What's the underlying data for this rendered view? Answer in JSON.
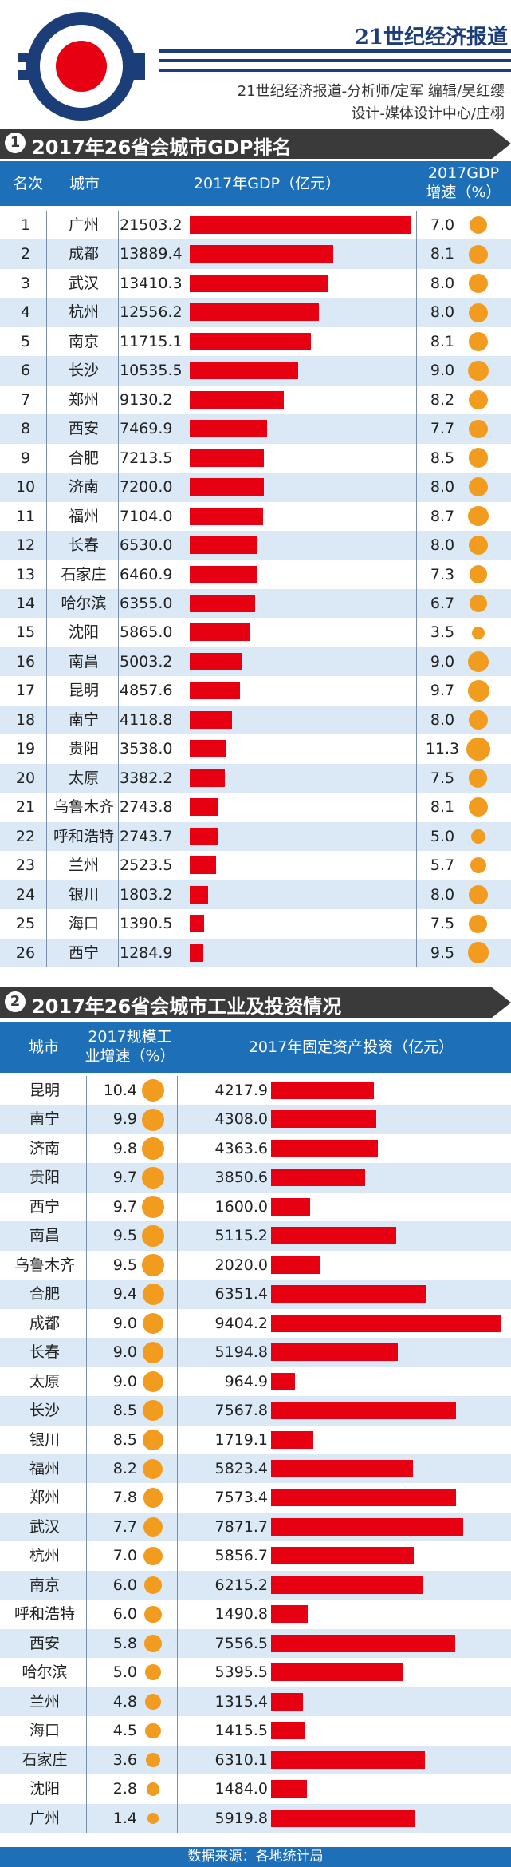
{
  "header": {
    "paper_name": "21世纪经济报道",
    "credit_line1": "21世纪经济报道-分析师/定军 编辑/吴红缨",
    "credit_line2": "设计-媒体设计中心/庄栩"
  },
  "section1": {
    "number": "1",
    "title": "2017年26省会城市GDP排名",
    "headers": {
      "rank": "名次",
      "city": "城市",
      "gdp": "2017年GDP（亿元）",
      "growth_line1": "2017GDP",
      "growth_line2": "增速（%）"
    }
  },
  "section2": {
    "number": "2",
    "title": "2017年26省会城市工业及投资情况",
    "headers": {
      "city": "城市",
      "ind_line1": "2017规模工",
      "ind_line2": "业增速（%）",
      "inv": "2017年固定资产投资（亿元）"
    }
  },
  "footer": {
    "source": "数据来源：各地统计局"
  },
  "colors": {
    "header_blue": "#1d6fb8",
    "bar_red": "#e60012",
    "dot_orange": "#f29c1f",
    "row_alt": "#dbe9f6",
    "banner_gray": "#3a3a3a"
  },
  "chart_data": [
    {
      "type": "bar",
      "title": "2017年26省会城市GDP排名",
      "categories": [
        "广州",
        "成都",
        "武汉",
        "杭州",
        "南京",
        "长沙",
        "郑州",
        "西安",
        "合肥",
        "济南",
        "福州",
        "长春",
        "石家庄",
        "哈尔滨",
        "沈阳",
        "南昌",
        "昆明",
        "南宁",
        "贵阳",
        "太原",
        "乌鲁木齐",
        "呼和浩特",
        "兰州",
        "银川",
        "海口",
        "西宁"
      ],
      "ranks": [
        "1",
        "2",
        "3",
        "4",
        "5",
        "6",
        "7",
        "8",
        "9",
        "10",
        "11",
        "12",
        "13",
        "14",
        "15",
        "16",
        "17",
        "18",
        "19",
        "20",
        "21",
        "22",
        "23",
        "24",
        "25",
        "26"
      ],
      "series": [
        {
          "name": "2017年GDP（亿元）",
          "values": [
            "21503.2",
            "13889.4",
            "13410.3",
            "12556.2",
            "11715.1",
            "10535.5",
            "9130.2",
            "7469.9",
            "7213.5",
            "7200.0",
            "7104.0",
            "6530.0",
            "6460.9",
            "6355.0",
            "5865.0",
            "5003.2",
            "4857.6",
            "4118.8",
            "3538.0",
            "3382.2",
            "2743.8",
            "2743.7",
            "2523.5",
            "1803.2",
            "1390.5",
            "1284.9"
          ]
        },
        {
          "name": "2017GDP增速（%）",
          "values": [
            "7.0",
            "8.1",
            "8.0",
            "8.0",
            "8.1",
            "9.0",
            "8.2",
            "7.7",
            "8.5",
            "8.0",
            "8.7",
            "8.0",
            "7.3",
            "6.7",
            "3.5",
            "9.0",
            "9.7",
            "8.0",
            "11.3",
            "7.5",
            "8.1",
            "5.0",
            "5.7",
            "8.0",
            "7.5",
            "9.5"
          ]
        }
      ]
    },
    {
      "type": "bar",
      "title": "2017年26省会城市工业及投资情况",
      "categories": [
        "昆明",
        "南宁",
        "济南",
        "贵阳",
        "西宁",
        "南昌",
        "乌鲁木齐",
        "合肥",
        "成都",
        "长春",
        "太原",
        "长沙",
        "银川",
        "福州",
        "郑州",
        "武汉",
        "杭州",
        "南京",
        "呼和浩特",
        "西安",
        "哈尔滨",
        "兰州",
        "海口",
        "石家庄",
        "沈阳",
        "广州"
      ],
      "series": [
        {
          "name": "2017规模工业增速（%）",
          "values": [
            "10.4",
            "9.9",
            "9.8",
            "9.7",
            "9.7",
            "9.5",
            "9.5",
            "9.4",
            "9.0",
            "9.0",
            "9.0",
            "8.5",
            "8.5",
            "8.2",
            "7.8",
            "7.7",
            "7.0",
            "6.0",
            "6.0",
            "5.8",
            "5.0",
            "4.8",
            "4.5",
            "3.6",
            "2.8",
            "1.4"
          ]
        },
        {
          "name": "2017年固定资产投资（亿元）",
          "values": [
            "4217.9",
            "4308.0",
            "4363.6",
            "3850.6",
            "1600.0",
            "5115.2",
            "2020.0",
            "6351.4",
            "9404.2",
            "5194.8",
            "964.9",
            "7567.8",
            "1719.1",
            "5823.4",
            "7573.4",
            "7871.7",
            "5856.7",
            "6215.2",
            "1490.8",
            "7556.5",
            "5395.5",
            "1315.4",
            "1415.5",
            "6310.1",
            "1484.0",
            "5919.8"
          ]
        }
      ]
    }
  ]
}
